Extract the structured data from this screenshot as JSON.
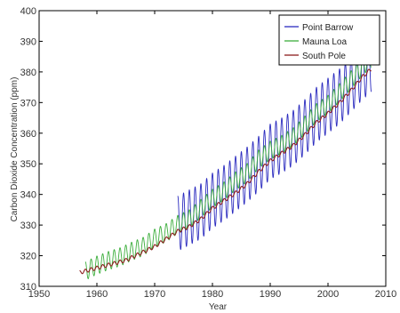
{
  "chart_data": {
    "type": "line",
    "xlabel": "Year",
    "ylabel": "Carbon Dioxide Concentration (ppm)",
    "xlim": [
      1950,
      2010
    ],
    "ylim": [
      310,
      400
    ],
    "xticks": [
      1950,
      1960,
      1970,
      1980,
      1990,
      2000,
      2010
    ],
    "yticks": [
      310,
      320,
      330,
      340,
      350,
      360,
      370,
      380,
      390,
      400
    ],
    "grid": false,
    "legend_position": "top-right",
    "series": [
      {
        "name": "Point Barrow",
        "color": "#2b2bbf",
        "x": [
          1974,
          1976,
          1978,
          1980,
          1982,
          1984,
          1986,
          1988,
          1990,
          1992,
          1994,
          1996,
          1998,
          2000,
          2002,
          2004,
          2006,
          2007.5
        ],
        "y": [
          330.5,
          332.5,
          334.5,
          338,
          340.5,
          343.5,
          346.5,
          350,
          354,
          356,
          358.5,
          362,
          366,
          369,
          372,
          376,
          380,
          382.5
        ],
        "seasonal_amplitude": 9
      },
      {
        "name": "Mauna Loa",
        "color": "#3cae3c",
        "x": [
          1958,
          1960,
          1962,
          1964,
          1966,
          1968,
          1970,
          1972,
          1974,
          1976,
          1978,
          1980,
          1982,
          1984,
          1986,
          1988,
          1990,
          1992,
          1994,
          1996,
          1998,
          2000,
          2002,
          2004,
          2006,
          2007.5
        ],
        "y": [
          315,
          316.9,
          318.4,
          319.6,
          321.4,
          323,
          325.7,
          327.5,
          330.2,
          332,
          335.4,
          338.7,
          341.1,
          344.4,
          347.1,
          351.5,
          354.4,
          356.3,
          358.8,
          362.6,
          366.7,
          369.4,
          373.2,
          377.4,
          381.9,
          384.5
        ],
        "seasonal_amplitude": 3
      },
      {
        "name": "South Pole",
        "color": "#8c1d1d",
        "x": [
          1957,
          1960,
          1965,
          1970,
          1974,
          1976,
          1978,
          1980,
          1982,
          1984,
          1986,
          1988,
          1990,
          1992,
          1994,
          1996,
          1998,
          2000,
          2002,
          2004,
          2006,
          2007.5
        ],
        "y": [
          314.5,
          316,
          318.5,
          323,
          328,
          329.5,
          332,
          335.5,
          338,
          340.5,
          343.5,
          347.5,
          351,
          353.5,
          356,
          359.5,
          363.5,
          366.5,
          370,
          374,
          378.5,
          381
        ],
        "seasonal_amplitude": 0.6
      }
    ]
  }
}
